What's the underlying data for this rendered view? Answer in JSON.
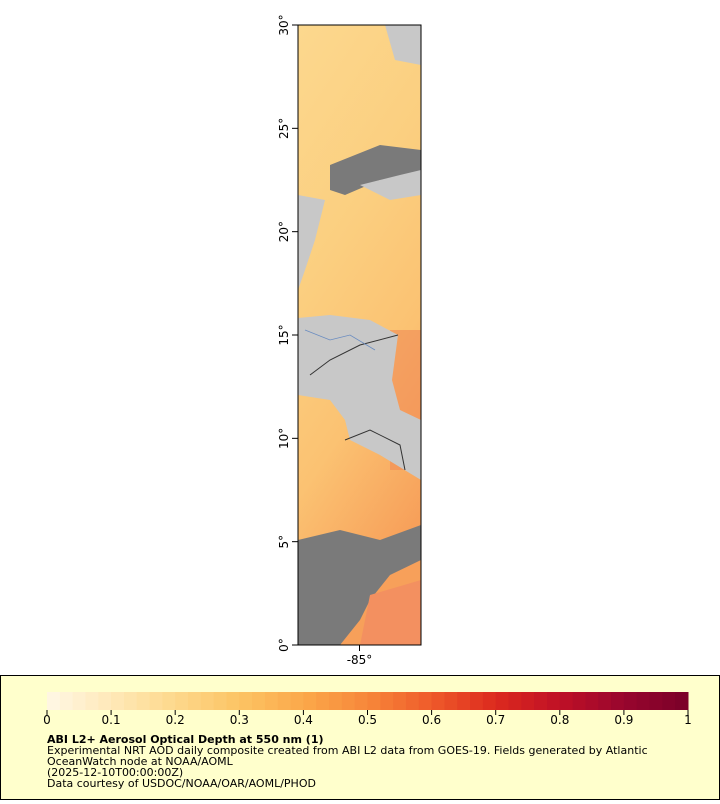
{
  "map": {
    "xlim": [
      -88,
      -82
    ],
    "ylim": [
      0,
      30
    ],
    "yticks": [
      {
        "value": 0,
        "label": "0°"
      },
      {
        "value": 5,
        "label": "5°"
      },
      {
        "value": 10,
        "label": "10°"
      },
      {
        "value": 15,
        "label": "15°"
      },
      {
        "value": 20,
        "label": "20°"
      },
      {
        "value": 25,
        "label": "25°"
      },
      {
        "value": 30,
        "label": "30°"
      }
    ],
    "xticks": [
      {
        "value": -85,
        "label": "-85°"
      }
    ]
  },
  "colorbar": {
    "lim": [
      0,
      1
    ],
    "ticks": [
      0,
      0.1,
      0.2,
      0.3,
      0.4,
      0.5,
      0.6,
      0.7,
      0.8,
      0.9,
      1
    ],
    "colors": [
      "#fff7e6",
      "#ffe9b8",
      "#fdd88c",
      "#fcc464",
      "#fba84a",
      "#f7873a",
      "#ef5a2a",
      "#dc2a1e",
      "#bf1026",
      "#98062e",
      "#7a0028"
    ]
  },
  "caption": {
    "title": "ABI L2+ Aerosol Optical Depth at 550 nm (1)",
    "lines": [
      "Experimental NRT AOD daily composite created from ABI L2 data from GOES-19. Fields generated by Atlantic",
      "OceanWatch node at NOAA/AOML",
      "(2025-12-10T00:00:00Z)",
      "Data courtesy of USDOC/NOAA/OAR/AOML/PHOD"
    ]
  }
}
